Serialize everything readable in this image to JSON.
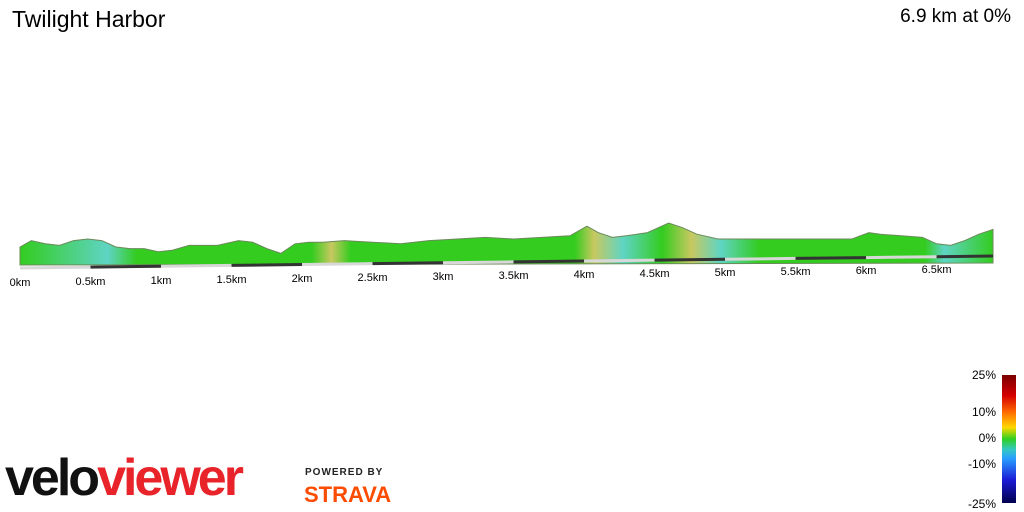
{
  "header": {
    "title": "Twilight Harbor",
    "summary": "6.9 km at 0%"
  },
  "chart_data": {
    "type": "area",
    "title": "Twilight Harbor",
    "xlabel": "",
    "ylabel": "",
    "x_unit": "km",
    "x_range": [
      0,
      6.9
    ],
    "tick_labels": [
      "0km",
      "0.5km",
      "1km",
      "1.5km",
      "2km",
      "2.5km",
      "3km",
      "3.5km",
      "4km",
      "4.5km",
      "5km",
      "5.5km",
      "6km",
      "6.5km"
    ],
    "tick_values": [
      0,
      0.5,
      1,
      1.5,
      2,
      2.5,
      3,
      3.5,
      4,
      4.5,
      5,
      5.5,
      6,
      6.5
    ],
    "profile_distance_km": [
      0,
      0.08,
      0.18,
      0.28,
      0.38,
      0.48,
      0.58,
      0.68,
      0.78,
      0.88,
      0.98,
      1.08,
      1.2,
      1.3,
      1.4,
      1.55,
      1.65,
      1.75,
      1.85,
      1.95,
      2.05,
      2.15,
      2.3,
      2.5,
      2.7,
      2.9,
      3.1,
      3.3,
      3.5,
      3.7,
      3.9,
      4.02,
      4.1,
      4.2,
      4.3,
      4.45,
      4.6,
      4.7,
      4.8,
      4.95,
      5.1,
      5.3,
      5.5,
      5.7,
      5.9,
      6.02,
      6.1,
      6.25,
      6.4,
      6.5,
      6.6,
      6.7,
      6.8,
      6.9
    ],
    "profile_relative_elevation": [
      5,
      9,
      7,
      6,
      9,
      10,
      9,
      5,
      4,
      4,
      2,
      3,
      6,
      6,
      6,
      9,
      8,
      4,
      1,
      7,
      8,
      8,
      9,
      8,
      7,
      9,
      10,
      11,
      10,
      11,
      12,
      18,
      14,
      11,
      12,
      14,
      20,
      17,
      13,
      10,
      10,
      10,
      10,
      10,
      10,
      14,
      13,
      12,
      11,
      7,
      6,
      9,
      13,
      16
    ],
    "colorbar": {
      "labels": [
        "25%",
        "10%",
        "0%",
        "-10%",
        "-25%"
      ],
      "values": [
        25,
        10,
        0,
        -10,
        -25
      ]
    }
  },
  "logos": {
    "velo": "velo",
    "viewer": "viewer",
    "powered_by": "POWERED BY",
    "strava": "STRAVA"
  },
  "colors": {
    "profile_green": "#33cc1f",
    "profile_cyan": "#5fd4c4",
    "profile_yellow": "#c8c860",
    "viewer_red": "#e8232a",
    "strava_orange": "#fc4c02"
  }
}
